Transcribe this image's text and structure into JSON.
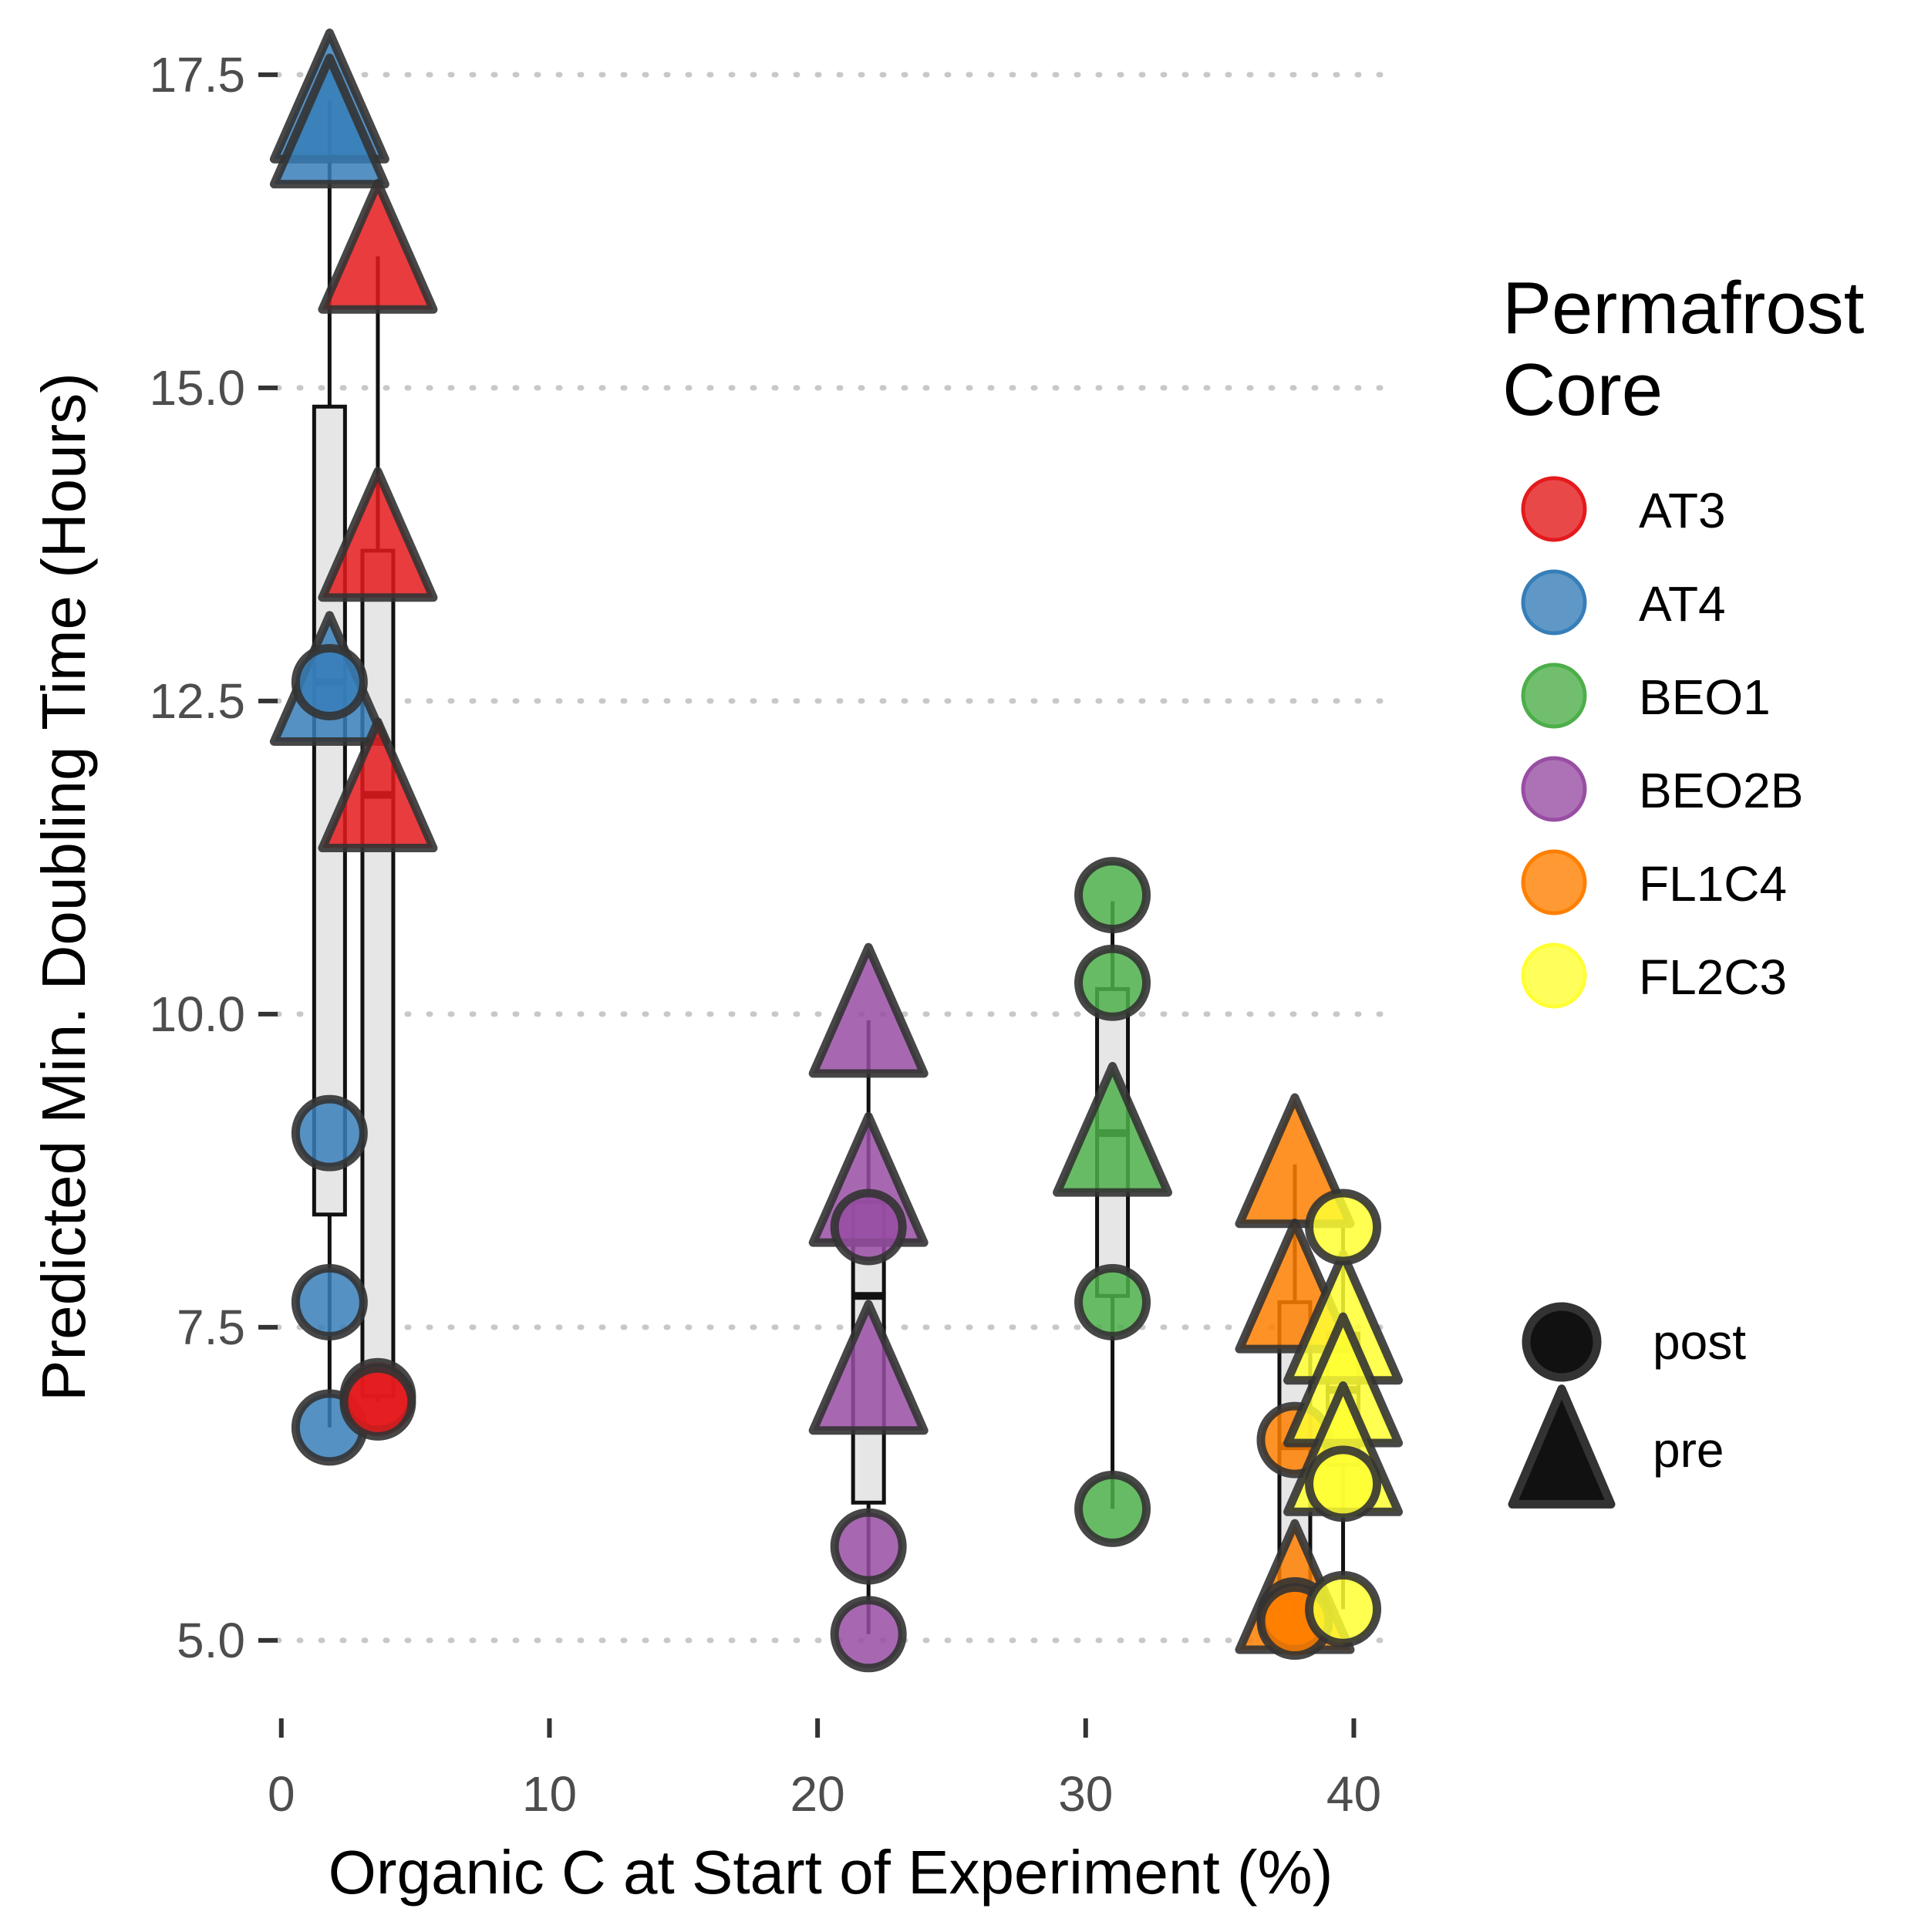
{
  "chart_data": {
    "type": "scatter",
    "xlabel": "Organic C at Start of Experiment (%)",
    "ylabel": "Predicted Min. Doubling Time (Hours)",
    "xlim": [
      -1,
      42
    ],
    "ylim": [
      4.55,
      17.85
    ],
    "x_ticks": [
      0,
      10,
      20,
      30,
      40
    ],
    "x_tick_labels": [
      "0",
      "10",
      "20",
      "30",
      "40"
    ],
    "y_ticks": [
      5.0,
      7.5,
      10.0,
      12.5,
      15.0,
      17.5
    ],
    "y_tick_labels": [
      "5.0",
      "7.5",
      "10.0",
      "12.5",
      "15.0",
      "17.5"
    ],
    "grid": "horizontal dotted major",
    "legend_position": "right",
    "color_legend_title": "Permafrost Core",
    "shape_legend_title": "",
    "cores": [
      {
        "name": "AT3",
        "color": "#e41a1c"
      },
      {
        "name": "AT4",
        "color": "#377eb8"
      },
      {
        "name": "BEO1",
        "color": "#4daf4a"
      },
      {
        "name": "BEO2B",
        "color": "#984ea3"
      },
      {
        "name": "FL1C4",
        "color": "#ff7f00"
      },
      {
        "name": "FL2C3",
        "color": "#ffff33"
      }
    ],
    "shapes": [
      {
        "name": "post",
        "shape": "circle"
      },
      {
        "name": "pre",
        "shape": "triangle"
      }
    ],
    "series": [
      {
        "core": "AT4",
        "x": 1.8,
        "post": [
          12.65,
          9.05,
          7.7,
          6.7
        ],
        "pre": [
          17.3,
          17.1,
          12.65
        ],
        "box": {
          "lower": 8.4,
          "median": 12.65,
          "upper": 14.85,
          "whisker_low": 6.7,
          "whisker_high": 17.3
        }
      },
      {
        "core": "AT3",
        "x": 3.6,
        "post": [
          6.95,
          6.9
        ],
        "pre": [
          16.1,
          13.8,
          11.8
        ],
        "box": {
          "lower": 6.95,
          "median": 11.75,
          "upper": 13.7,
          "whisker_low": 6.9,
          "whisker_high": 16.05
        }
      },
      {
        "core": "BEO2B",
        "x": 21.9,
        "post": [
          8.3,
          5.75,
          5.05
        ],
        "pre": [
          10.0,
          8.65,
          7.15
        ],
        "box": {
          "lower": 6.1,
          "median": 7.75,
          "upper": 8.5,
          "whisker_low": 5.05,
          "whisker_high": 9.95
        }
      },
      {
        "core": "BEO1",
        "x": 31.0,
        "post": [
          10.95,
          10.25,
          7.7,
          6.05
        ],
        "pre": [
          9.05
        ],
        "box": {
          "lower": 7.75,
          "median": 9.05,
          "upper": 10.2,
          "whisker_low": 6.05,
          "whisker_high": 10.9
        }
      },
      {
        "core": "FL1C4",
        "x": 37.8,
        "post": [
          6.6,
          5.2,
          5.15
        ],
        "pre": [
          8.8,
          7.8,
          5.4
        ],
        "box": {
          "lower": 5.35,
          "median": 6.55,
          "upper": 7.7,
          "whisker_low": 5.15,
          "whisker_high": 8.8
        }
      },
      {
        "core": "FL2C3",
        "x": 39.6,
        "post": [
          8.3,
          6.25,
          5.25
        ],
        "pre": [
          7.55,
          7.05,
          6.5
        ],
        "box": {
          "lower": 6.4,
          "median": 7.0,
          "upper": 7.45,
          "whisker_low": 5.25,
          "whisker_high": 8.3
        }
      }
    ]
  }
}
